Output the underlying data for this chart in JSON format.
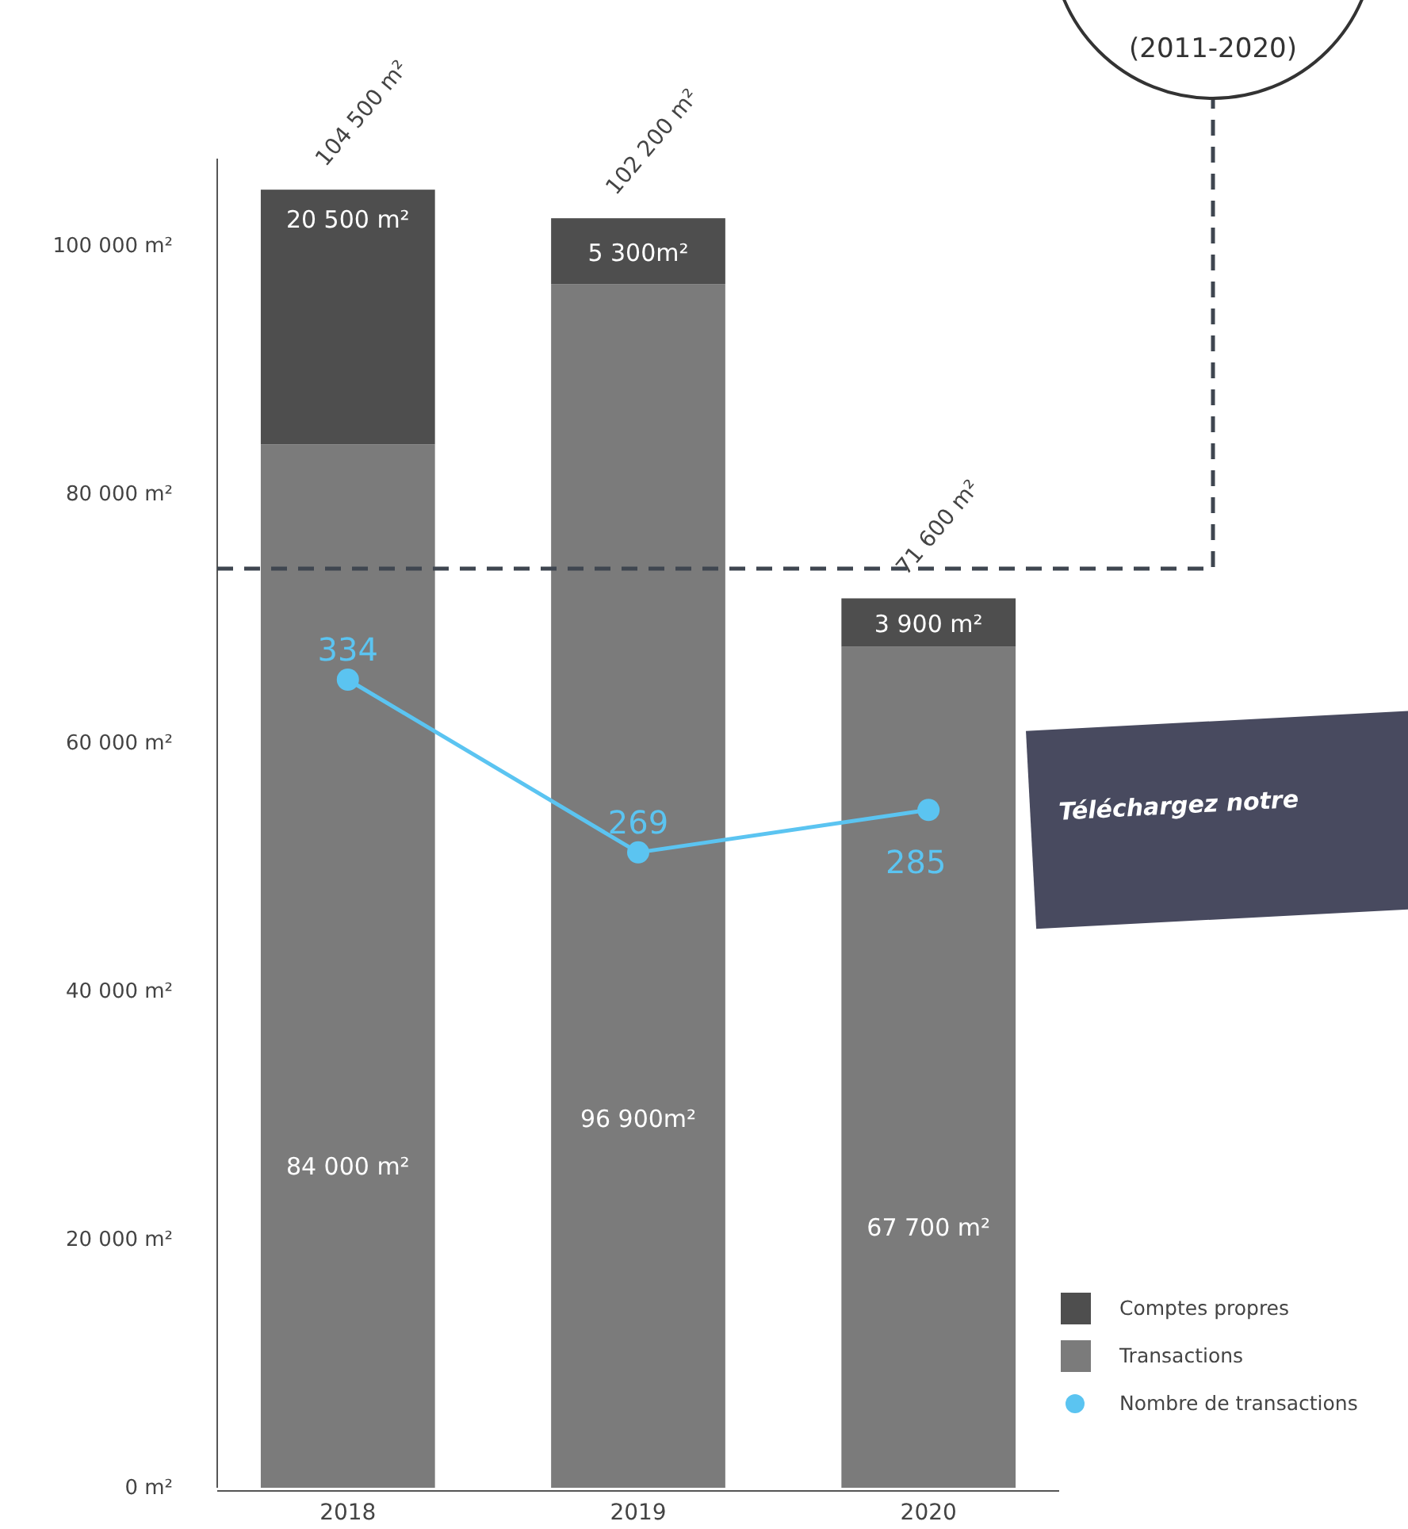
{
  "chart_data": {
    "type": "bar",
    "stacked": true,
    "categories": [
      "2018",
      "2019",
      "2020"
    ],
    "series": [
      {
        "name": "Transactions",
        "color": "#7b7b7b",
        "values": [
          84000,
          96900,
          67700
        ],
        "value_labels": [
          "84 000 m²",
          "96 900m²",
          "67 700 m²"
        ]
      },
      {
        "name": "Comptes propres",
        "color": "#4e4e4e",
        "values": [
          20500,
          5300,
          3900
        ],
        "value_labels": [
          "20 500 m²",
          "5 300m²",
          "3 900 m²"
        ]
      },
      {
        "name": "Nombre de transactions",
        "type": "line",
        "axis": "y2",
        "color": "#5bc4f1",
        "marker": "circle",
        "values": [
          334,
          269,
          285
        ],
        "value_labels": [
          "334",
          "269",
          "285"
        ]
      }
    ],
    "totals": [
      "104 500 m²",
      "102 200 m²",
      "71 600 m²"
    ],
    "ylim": [
      0,
      107000
    ],
    "yticks": [
      {
        "value": 0,
        "label": "0 m²"
      },
      {
        "value": 20000,
        "label": "20 000 m²"
      },
      {
        "value": 40000,
        "label": "40 000 m²"
      },
      {
        "value": 60000,
        "label": "60 000 m²"
      },
      {
        "value": 80000,
        "label": "80 000 m²"
      },
      {
        "value": 100000,
        "label": "100 000 m²"
      }
    ],
    "y2lim": [
      30,
      530
    ],
    "tick_labels": "xy",
    "ref_lines": [
      {
        "axis": "y",
        "value": 74000,
        "color": "#3f4650",
        "line_style": "dashed"
      }
    ],
    "annotations": [
      "(2011-2020)",
      "Téléchargez notre"
    ],
    "legend": "bottom right",
    "grid": false
  }
}
